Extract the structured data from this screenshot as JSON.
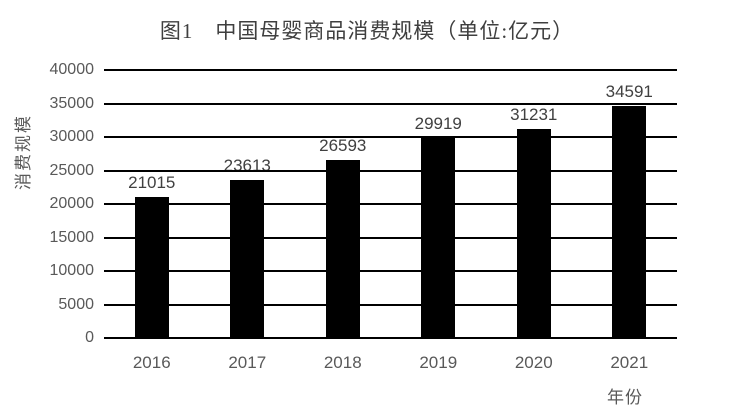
{
  "title": "图1　中国母婴商品消费规模（单位:亿元）",
  "y_axis_label": "消费规模",
  "x_axis_label": "年份",
  "colors": {
    "bar": "#000000",
    "gridline": "#000000",
    "tick_label": "#595959",
    "data_label": "#404040",
    "title": "#3f3f3f",
    "background": "#ffffff"
  },
  "chart_data": {
    "type": "bar",
    "title": "图1　中国母婴商品消费规模（单位:亿元）",
    "xlabel": "年份",
    "ylabel": "消费规模",
    "categories": [
      "2016",
      "2017",
      "2018",
      "2019",
      "2020",
      "2021"
    ],
    "values": [
      21015,
      23613,
      26593,
      29919,
      31231,
      34591
    ],
    "y_ticks": [
      0,
      5000,
      10000,
      15000,
      20000,
      25000,
      30000,
      35000,
      40000
    ],
    "ylim": [
      0,
      40000
    ],
    "grid": "horizontal",
    "legend": "none",
    "data_labels": "outside-end"
  }
}
